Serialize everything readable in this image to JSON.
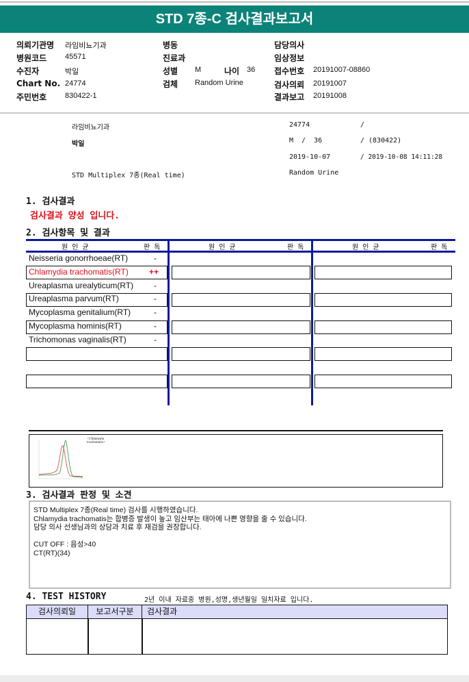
{
  "title": "STD 7종-C 검사결과보고서",
  "info": {
    "inst_label": "의뢰기관명",
    "inst": "라임비뇨기과",
    "code_label": "병원코드",
    "code": "45571",
    "patient_label": "수진자",
    "patient": "박일",
    "chart_label": "Chart No.",
    "chart": "24774",
    "ssn_label": "주민번호",
    "ssn": "830422-1",
    "ward_label": "병동",
    "dept_label": "진료과",
    "sex_label": "성별",
    "sex": "M",
    "age_label": "나이",
    "age": "36",
    "specimen_label": "검체",
    "specimen": "Random Urine",
    "doctor_label": "담당의사",
    "clinical_label": "임상정보",
    "receipt_label": "접수번호",
    "receipt": "20191007-08860",
    "request_label": "검사의뢰",
    "request": "20191007",
    "report_label": "결과보고",
    "report": "20191008"
  },
  "summary": {
    "inst": "라임비뇨기과",
    "patient": "박일",
    "test": "STD Multiplex 7종(Real time)",
    "chart": "24774",
    "slash1": "/",
    "sex_age": "M  /  36",
    "birth": "/ (830422)",
    "date": "2019-10-07",
    "report_time": "/ 2019-10-08 14:11:28",
    "specimen": "Random Urine"
  },
  "section1": {
    "title": "1. 검사결과",
    "result": "검사결과 양성 입니다."
  },
  "section2": {
    "title": "2. 검사항목 및 결과",
    "col_org": "원인균",
    "col_res": "판독",
    "rows": [
      {
        "name": "Neisseria gonorrhoeae(RT)",
        "result": "-"
      },
      {
        "name": "Chlamydia trachomatis(RT)",
        "result": "++"
      },
      {
        "name": "Ureaplasma urealyticum(RT)",
        "result": "-"
      },
      {
        "name": "Ureaplasma parvum(RT)",
        "result": "-"
      },
      {
        "name": "Mycoplasma genitalium(RT)",
        "result": "-"
      },
      {
        "name": "Mycoplasma hominis(RT)",
        "result": "-"
      },
      {
        "name": "Trichomonas vaginalis(RT)",
        "result": "-"
      }
    ],
    "positive_color": "#e0101a"
  },
  "graph": {
    "label": "<Chlamydia trachomatis>",
    "series_colors": [
      "#d9534f",
      "#4a9a5a"
    ]
  },
  "section3": {
    "title": "3. 검사결과 판정 및 소견",
    "comment": "STD Multiplex 7종(Real time) 검사를 시행하였습니다.\nChlamydia trachomatis는 합병증 발생이 높고 임산부는 태아에 나쁜 영향을 줄 수 있습니다.\n담당 의사 선생님과의 상담과 치료 후 재검을 권장합니다.\n\nCUT OFF : 음성>40\nCT(RT)(34)"
  },
  "section4": {
    "title": "4. TEST HISTORY",
    "note": "2년 이내 자료중 병원,성명,생년월일 일치자료 입니다.",
    "headers": [
      "검사의뢰일",
      "보고서구분",
      "검사결과"
    ]
  },
  "colors": {
    "banner": "#0b8379",
    "table_rule": "#0a1a9c",
    "history_header": "#dcdcfa"
  }
}
